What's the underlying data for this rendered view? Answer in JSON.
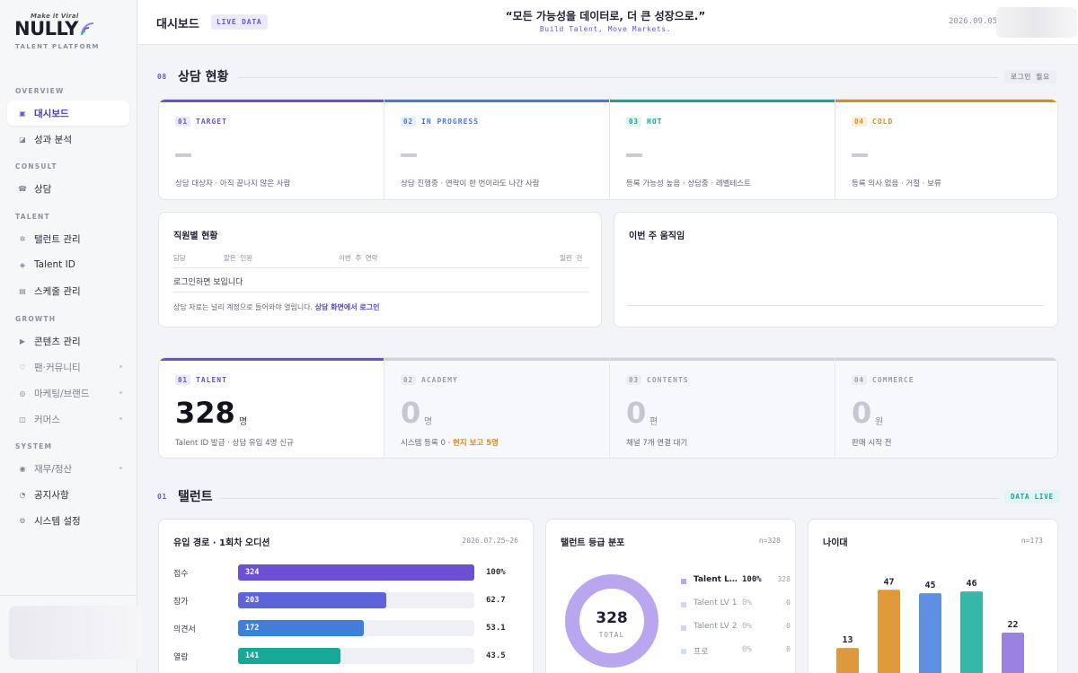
{
  "brand": {
    "tagline": "Make it Viral",
    "wordmark": "NULLY",
    "subtitle": "TALENT PLATFORM"
  },
  "sidebar": {
    "sections": [
      {
        "label": "OVERVIEW",
        "items": [
          {
            "label": "대시보드",
            "icon": "grid-square-icon",
            "active": true
          },
          {
            "label": "성과 분석",
            "icon": "chart-icon"
          }
        ]
      },
      {
        "label": "CONSULT",
        "items": [
          {
            "label": "상담",
            "icon": "phone-icon"
          }
        ]
      },
      {
        "label": "TALENT",
        "items": [
          {
            "label": "탤런트 관리",
            "icon": "star-icon"
          },
          {
            "label": "Talent ID",
            "icon": "diamond-icon"
          },
          {
            "label": "스케줄 관리",
            "icon": "calendar-icon"
          }
        ]
      },
      {
        "label": "GROWTH",
        "items": [
          {
            "label": "콘텐츠 관리",
            "icon": "play-icon"
          },
          {
            "label": "팬·커뮤니티",
            "icon": "heart-icon",
            "locked": true
          },
          {
            "label": "마케팅/브랜드",
            "icon": "target-icon",
            "locked": true
          },
          {
            "label": "커머스",
            "icon": "cart-icon",
            "locked": true
          }
        ]
      },
      {
        "label": "SYSTEM",
        "items": [
          {
            "label": "재무/정산",
            "icon": "coin-icon",
            "locked": true
          },
          {
            "label": "공지사항",
            "icon": "bell-icon"
          },
          {
            "label": "시스템 설정",
            "icon": "gear-icon"
          }
        ]
      }
    ]
  },
  "header": {
    "title": "대시보드",
    "badge": "LIVE DATA",
    "quote": "“모든 가능성을 데이터로, 더 큰 성장으로.”",
    "quote_sub": "Build Talent, Move Markets.",
    "date": "2026.09.05"
  },
  "consult": {
    "num": "08",
    "title": "상담 현황",
    "pill": "로그인 필요",
    "quadrants": [
      {
        "num": "01",
        "label": "TARGET",
        "desc": "상담 대상자 · 아직 끝나지 않은 사람",
        "color": "#6a4fd0"
      },
      {
        "num": "02",
        "label": "IN PROGRESS",
        "desc": "상담 진행중 · 연락이 한 번이라도 나간 사람",
        "color": "#4a78d6"
      },
      {
        "num": "03",
        "label": "HOT",
        "desc": "등록 가능성 높음 · 상담중 · 레벨테스트",
        "color": "#15a394"
      },
      {
        "num": "04",
        "label": "COLD",
        "desc": "등록 의사 없음 · 거절 · 보류",
        "color": "#dc8a1c"
      }
    ],
    "staff": {
      "title": "직원별 현황",
      "cols": [
        "담당",
        "맡은 인원",
        "이번 주 연락",
        "밀린 건"
      ],
      "empty": "로그인하면 보입니다",
      "note": "상담 자료는 널리 계정으로 들어와야 열립니다.",
      "note_link": "상담 화면에서 로그인"
    },
    "weekly": {
      "title": "이번 주 움직임"
    }
  },
  "stats": [
    {
      "num": "01",
      "label": "TALENT",
      "value": "328",
      "unit": "명",
      "desc": "Talent ID 발급 · 상담 유입 4명 신규",
      "desc_hl": "",
      "active": true
    },
    {
      "num": "02",
      "label": "ACADEMY",
      "value": "0",
      "unit": "명",
      "desc": "시스템 등록 0 · ",
      "desc_hl": "현지 보고 5명"
    },
    {
      "num": "03",
      "label": "CONTENTS",
      "value": "0",
      "unit": "편",
      "desc": "채널 7개 연결 대기",
      "desc_hl": ""
    },
    {
      "num": "04",
      "label": "COMMERCE",
      "value": "0",
      "unit": "원",
      "desc": "판매 시작 전",
      "desc_hl": ""
    }
  ],
  "talent": {
    "num": "01",
    "title": "탤런트",
    "pill": "DATA LIVE",
    "funnel": {
      "title": "유입 경로 · 1회차 오디션",
      "date": "2026.07.25~26"
    },
    "grade": {
      "title": "탤런트 등급 분포",
      "n": "n=328",
      "total_label": "TOTAL"
    },
    "age": {
      "title": "나이대",
      "n": "n=173"
    }
  },
  "chart_data": [
    {
      "type": "bar",
      "orientation": "horizontal",
      "title": "유입 경로 · 1회차 오디션",
      "categories": [
        "접수",
        "참가",
        "의견서",
        "열람"
      ],
      "values": [
        324,
        203,
        172,
        141
      ],
      "percent_labels": [
        "100%",
        "62.7",
        "53.1",
        "43.5"
      ],
      "colors": [
        "#6c4fd6",
        "#5d63d8",
        "#3f7fd8",
        "#17a898"
      ],
      "xlim": [
        0,
        324
      ]
    },
    {
      "type": "pie",
      "variant": "donut",
      "title": "탤런트 등급 분포",
      "total": "328",
      "slices": [
        {
          "name": "Talent L...",
          "pct": "100%",
          "count": "328",
          "value": 328,
          "color": "#b9a6ef"
        },
        {
          "name": "Talent LV 1",
          "pct": "0%",
          "count": "0",
          "value": 0,
          "color": "#d8d0f6"
        },
        {
          "name": "Talent LV 2",
          "pct": "0%",
          "count": "0",
          "value": 0,
          "color": "#d8d0f6"
        },
        {
          "name": "프로",
          "pct": "0%",
          "count": "0",
          "value": 0,
          "color": "#cfe0f6"
        }
      ]
    },
    {
      "type": "bar",
      "title": "나이대",
      "values": [
        13,
        47,
        45,
        46,
        22
      ],
      "colors": [
        "#dc9a3c",
        "#e09a3a",
        "#5d8fe2",
        "#36b7a8",
        "#9a82e0"
      ],
      "ylim": [
        0,
        55
      ]
    }
  ]
}
